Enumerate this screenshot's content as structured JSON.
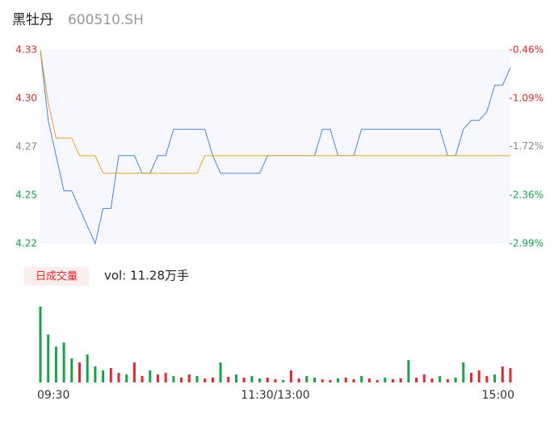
{
  "header": {
    "name": "黑牡丹",
    "code": "600510.SH"
  },
  "chart_data": {
    "type": "line",
    "x": [
      0,
      4,
      8,
      12,
      16,
      20,
      24,
      28,
      32,
      36,
      40,
      44,
      48,
      52,
      56,
      60,
      64,
      68,
      72,
      76,
      80,
      84,
      88,
      92,
      96,
      100,
      104,
      108,
      112,
      116,
      120,
      124,
      128,
      132,
      136,
      140,
      144,
      148,
      152,
      156,
      160,
      164,
      168,
      172,
      176,
      180,
      184,
      188,
      192,
      196,
      200,
      204,
      208,
      212,
      216,
      220,
      224,
      228,
      232,
      236,
      240
    ],
    "xlim": [
      0,
      240
    ],
    "xticks": [
      {
        "value": 0,
        "label": "09:30"
      },
      {
        "value": 120,
        "label": "11:30/13:00"
      },
      {
        "value": 240,
        "label": "15:00"
      }
    ],
    "ylim": [
      4.22,
      4.33
    ],
    "yticks": [
      {
        "value": 4.33,
        "label": "4.33",
        "color": "#e8262b"
      },
      {
        "value": 4.3025,
        "label": "4.30",
        "color": "#e8262b"
      },
      {
        "value": 4.275,
        "label": "4.27",
        "color": "#888888"
      },
      {
        "value": 4.2475,
        "label": "4.25",
        "color": "#16a34a"
      },
      {
        "value": 4.22,
        "label": "4.22",
        "color": "#16a34a"
      }
    ],
    "y2lim": [
      -2.99,
      -0.46
    ],
    "y2ticks": [
      {
        "value": -0.46,
        "label": "-0.46%",
        "color": "#e8262b"
      },
      {
        "value": -1.09,
        "label": "-1.09%",
        "color": "#e8262b"
      },
      {
        "value": -1.72,
        "label": "-1.72%",
        "color": "#888888"
      },
      {
        "value": -2.36,
        "label": "-2.36%",
        "color": "#16a34a"
      },
      {
        "value": -2.99,
        "label": "-2.99%",
        "color": "#16a34a"
      }
    ],
    "series": [
      {
        "name": "price",
        "color": "#4a84e8",
        "values": [
          4.33,
          4.29,
          4.27,
          4.25,
          4.25,
          4.24,
          4.23,
          4.22,
          4.24,
          4.24,
          4.27,
          4.27,
          4.27,
          4.26,
          4.26,
          4.27,
          4.27,
          4.285,
          4.285,
          4.285,
          4.285,
          4.285,
          4.27,
          4.26,
          4.26,
          4.26,
          4.26,
          4.26,
          4.26,
          4.27,
          4.27,
          4.27,
          4.27,
          4.27,
          4.27,
          4.27,
          4.285,
          4.285,
          4.27,
          4.27,
          4.27,
          4.285,
          4.285,
          4.285,
          4.285,
          4.285,
          4.285,
          4.285,
          4.285,
          4.285,
          4.285,
          4.285,
          4.27,
          4.27,
          4.285,
          4.29,
          4.29,
          4.295,
          4.31,
          4.31,
          4.32
        ]
      },
      {
        "name": "average",
        "color": "#f0a020",
        "values": [
          4.33,
          4.3,
          4.28,
          4.28,
          4.28,
          4.27,
          4.27,
          4.27,
          4.26,
          4.26,
          4.26,
          4.26,
          4.26,
          4.26,
          4.26,
          4.26,
          4.26,
          4.26,
          4.26,
          4.26,
          4.26,
          4.27,
          4.27,
          4.27,
          4.27,
          4.27,
          4.27,
          4.27,
          4.27,
          4.27,
          4.27,
          4.27,
          4.27,
          4.27,
          4.27,
          4.27,
          4.27,
          4.27,
          4.27,
          4.27,
          4.27,
          4.27,
          4.27,
          4.27,
          4.27,
          4.27,
          4.27,
          4.27,
          4.27,
          4.27,
          4.27,
          4.27,
          4.27,
          4.27,
          4.27,
          4.27,
          4.27,
          4.27,
          4.27,
          4.27,
          4.27
        ]
      }
    ],
    "volume_label": "日成交量",
    "volume_text": "vol: 11.28万手",
    "volume_ylim": [
      0,
      100
    ],
    "volume": [
      95,
      60,
      45,
      50,
      30,
      25,
      35,
      20,
      15,
      18,
      12,
      10,
      25,
      8,
      15,
      10,
      12,
      8,
      6,
      10,
      8,
      5,
      6,
      25,
      7,
      10,
      6,
      8,
      5,
      6,
      4,
      3,
      15,
      5,
      8,
      6,
      4,
      3,
      5,
      6,
      4,
      8,
      5,
      3,
      6,
      4,
      5,
      28,
      6,
      10,
      5,
      8,
      4,
      6,
      25,
      12,
      15,
      8,
      10,
      20,
      18
    ],
    "volume_direction": [
      "down",
      "down",
      "down",
      "down",
      "down",
      "up",
      "down",
      "down",
      "down",
      "up",
      "up",
      "down",
      "up",
      "up",
      "down",
      "up",
      "up",
      "down",
      "up",
      "up",
      "down",
      "up",
      "up",
      "down",
      "up",
      "down",
      "up",
      "down",
      "down",
      "up",
      "up",
      "down",
      "up",
      "up",
      "down",
      "down",
      "up",
      "up",
      "down",
      "up",
      "up",
      "down",
      "up",
      "up",
      "down",
      "up",
      "up",
      "down",
      "up",
      "up",
      "up",
      "down",
      "up",
      "down",
      "down",
      "up",
      "up",
      "up",
      "down",
      "up",
      "up"
    ],
    "volume_colors": {
      "up": "#e8262b",
      "down": "#16a34a"
    }
  }
}
